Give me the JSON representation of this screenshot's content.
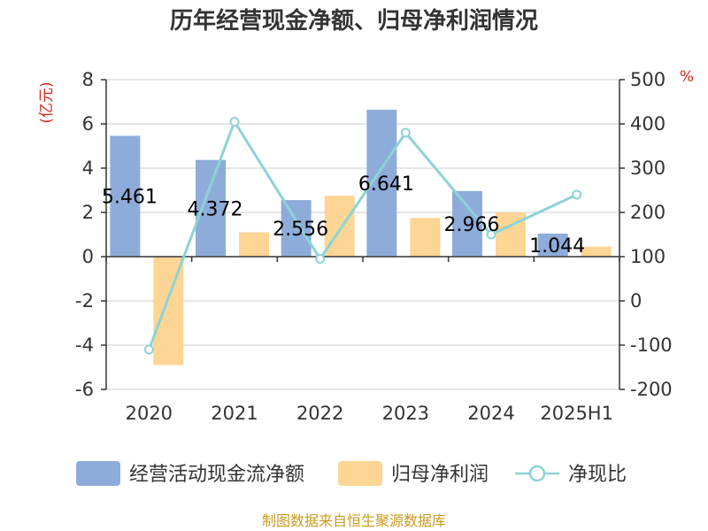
{
  "chart_data": {
    "type": "bar+line",
    "title": "历年经营现金净额、归母净利润情况",
    "categories": [
      "2020",
      "2021",
      "2022",
      "2023",
      "2024",
      "2025H1"
    ],
    "left_axis": {
      "unit": "(亿元)",
      "ylim": [
        -6,
        8
      ],
      "ticks": [
        "8",
        "6",
        "4",
        "2",
        "0",
        "-2",
        "-4",
        "-6"
      ],
      "tick_values": [
        8,
        6,
        4,
        2,
        0,
        -2,
        -4,
        -6
      ]
    },
    "right_axis": {
      "unit": "%",
      "ylim": [
        -200,
        500
      ],
      "ticks": [
        "500",
        "400",
        "300",
        "200",
        "100",
        "0",
        "-100",
        "-200"
      ],
      "tick_values": [
        500,
        400,
        300,
        200,
        100,
        0,
        -100,
        -200
      ]
    },
    "series": [
      {
        "name": "经营活动现金流净额",
        "type": "bar",
        "axis": "left",
        "color": "#8eacd9",
        "values": [
          5.461,
          4.372,
          2.556,
          6.641,
          2.966,
          1.044
        ],
        "labels": [
          "5.461",
          "4.372",
          "2.556",
          "6.641",
          "2.966",
          "1.044"
        ]
      },
      {
        "name": "归母净利润",
        "type": "bar",
        "axis": "left",
        "color": "#fdd594",
        "values": [
          -4.9,
          1.1,
          2.75,
          1.75,
          2.0,
          0.45
        ]
      },
      {
        "name": "净现比",
        "type": "line",
        "axis": "right",
        "color": "#8dd3d6",
        "values": [
          -110,
          405,
          95,
          380,
          150,
          240
        ]
      }
    ],
    "grid": true
  },
  "legend": {
    "items": [
      "经营活动现金流净额",
      "归母净利润",
      "净现比"
    ]
  },
  "source": "制图数据来自恒生聚源数据库"
}
